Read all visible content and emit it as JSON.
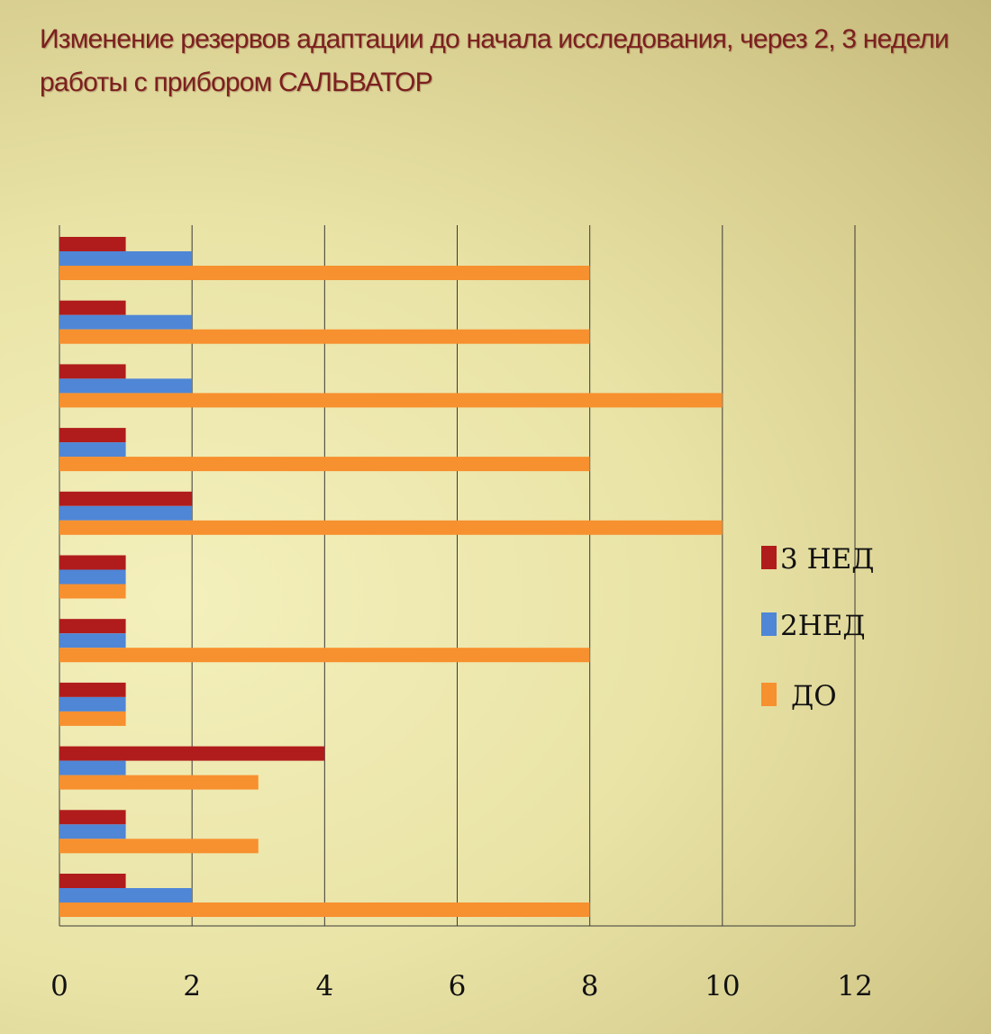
{
  "chart_data": {
    "type": "bar",
    "orientation": "horizontal",
    "title": "Изменение   резервов  адаптации до начала исследования, через 2, 3 недели работы с прибором САЛЬВАТОР",
    "xlim": [
      0,
      12
    ],
    "x_ticks": [
      "0",
      "2",
      "4",
      "6",
      "8",
      "10",
      "12"
    ],
    "grid": "vertical",
    "legend_position": "right",
    "category_count": 11,
    "series": [
      {
        "name": "3 НЕД",
        "color": "#b01c1c",
        "values": [
          1,
          1,
          1,
          1,
          2,
          1,
          1,
          1,
          4,
          1,
          1
        ]
      },
      {
        "name": "2НЕД",
        "color": "#4f86d6",
        "values": [
          2,
          2,
          2,
          1,
          2,
          1,
          1,
          1,
          1,
          1,
          2
        ]
      },
      {
        "name": "ДО",
        "color": "#f7902f",
        "values": [
          8,
          8,
          10,
          8,
          10,
          1,
          8,
          1,
          3,
          3,
          8
        ]
      }
    ]
  }
}
